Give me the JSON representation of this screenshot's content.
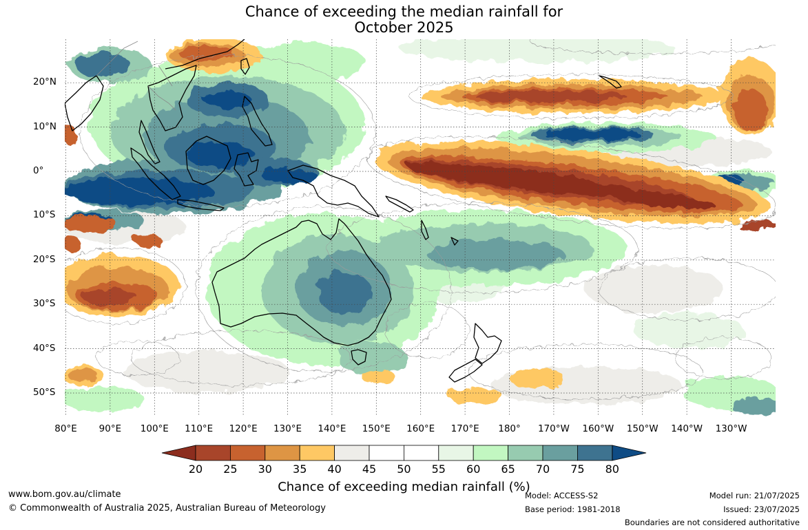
{
  "title_line1": "Chance of exceeding the median rainfall for",
  "title_line2": "October 2025",
  "lat_labels": [
    {
      "text": "20°N",
      "lat": 20
    },
    {
      "text": "10°N",
      "lat": 10
    },
    {
      "text": "0°",
      "lat": 0
    },
    {
      "text": "10°S",
      "lat": -10
    },
    {
      "text": "20°S",
      "lat": -20
    },
    {
      "text": "30°S",
      "lat": -30
    },
    {
      "text": "40°S",
      "lat": -40
    },
    {
      "text": "50°S",
      "lat": -50
    }
  ],
  "lon_labels": [
    {
      "text": "80°E",
      "lon": 80
    },
    {
      "text": "90°E",
      "lon": 90
    },
    {
      "text": "100°E",
      "lon": 100
    },
    {
      "text": "110°E",
      "lon": 110
    },
    {
      "text": "120°E",
      "lon": 120
    },
    {
      "text": "130°E",
      "lon": 130
    },
    {
      "text": "140°E",
      "lon": 140
    },
    {
      "text": "150°E",
      "lon": 150
    },
    {
      "text": "160°E",
      "lon": 160
    },
    {
      "text": "170°E",
      "lon": 170
    },
    {
      "text": "180°",
      "lon": 180
    },
    {
      "text": "170°W",
      "lon": 190
    },
    {
      "text": "160°W",
      "lon": 200
    },
    {
      "text": "150°W",
      "lon": 210
    },
    {
      "text": "140°W",
      "lon": 220
    },
    {
      "text": "130°W",
      "lon": 230
    }
  ],
  "colorbar": {
    "title": "Chance of exceeding median rainfall (%)",
    "ticks": [
      "20",
      "25",
      "30",
      "35",
      "40",
      "45",
      "50",
      "55",
      "60",
      "65",
      "70",
      "75",
      "80"
    ],
    "under_color": "#8c2d1e",
    "over_color": "#0f4c85",
    "colors": [
      "#a8452a",
      "#c7622f",
      "#de9544",
      "#fec864",
      "#eeede9",
      "#ffffff",
      "#ffffff",
      "#e8f6e6",
      "#c2f7c1",
      "#97cbb0",
      "#6a9f9f",
      "#3e7390"
    ]
  },
  "footer": {
    "website": "www.bom.gov.au/climate",
    "copyright": "© Commonwealth of Australia 2025, Australian Bureau of Meteorology",
    "model": "Model: ACCESS-S2",
    "base_period": "Base period: 1981-2018",
    "model_run": "Model run: 21/07/2025",
    "issued": "Issued: 23/07/2025",
    "disclaimer": "Boundaries are not considered authoritative"
  }
}
